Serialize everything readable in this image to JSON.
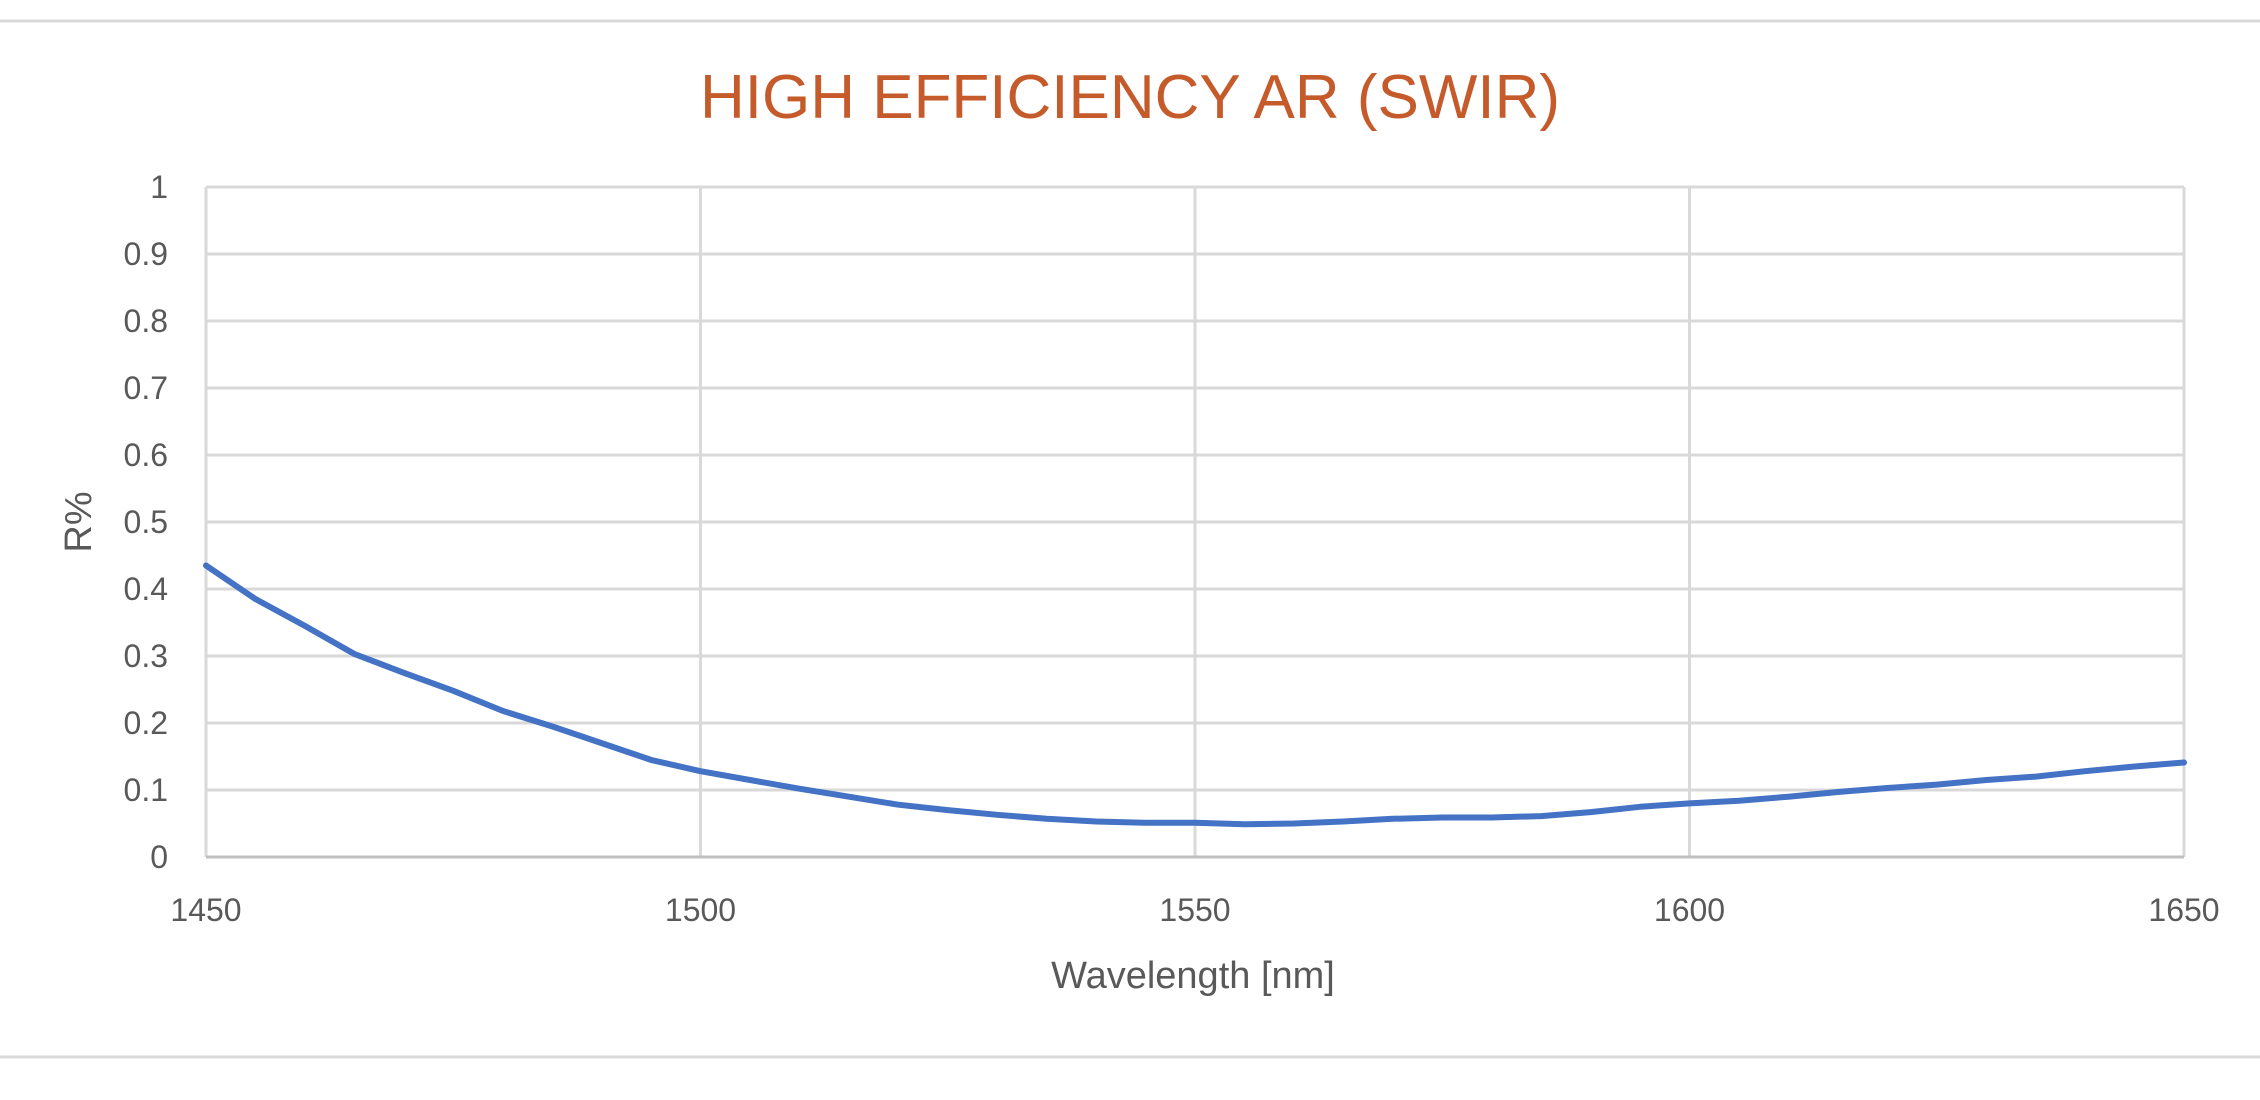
{
  "chart_data": {
    "type": "line",
    "title": "HIGH EFFICIENCY AR (SWIR)",
    "xlabel": "Wavelength [nm]",
    "ylabel": "R%",
    "xlim": [
      1450,
      1650
    ],
    "ylim": [
      0,
      1
    ],
    "x_ticks": [
      "1450",
      "1500",
      "1550",
      "1600",
      "1650"
    ],
    "y_ticks": [
      "0",
      "0.1",
      "0.2",
      "0.3",
      "0.4",
      "0.5",
      "0.6",
      "0.7",
      "0.8",
      "0.9",
      "1"
    ],
    "grid": true,
    "legend": "none",
    "colors": {
      "title": "#c55a2b",
      "series": "#4472c4"
    },
    "series": [
      {
        "x": [
          1450,
          1455,
          1460,
          1465,
          1470,
          1475,
          1480,
          1485,
          1490,
          1495,
          1500,
          1505,
          1510,
          1515,
          1520,
          1525,
          1530,
          1535,
          1540,
          1545,
          1550,
          1555,
          1560,
          1565,
          1570,
          1575,
          1580,
          1585,
          1590,
          1595,
          1600,
          1605,
          1610,
          1615,
          1620,
          1625,
          1630,
          1635,
          1640,
          1645,
          1650
        ],
        "y": [
          0.435,
          0.385,
          0.345,
          0.303,
          0.275,
          0.248,
          0.218,
          0.195,
          0.17,
          0.145,
          0.128,
          0.115,
          0.102,
          0.09,
          0.078,
          0.07,
          0.063,
          0.057,
          0.053,
          0.051,
          0.051,
          0.049,
          0.05,
          0.053,
          0.057,
          0.059,
          0.059,
          0.061,
          0.067,
          0.075,
          0.08,
          0.084,
          0.09,
          0.097,
          0.103,
          0.108,
          0.115,
          0.12,
          0.128,
          0.135,
          0.141
        ]
      }
    ]
  }
}
